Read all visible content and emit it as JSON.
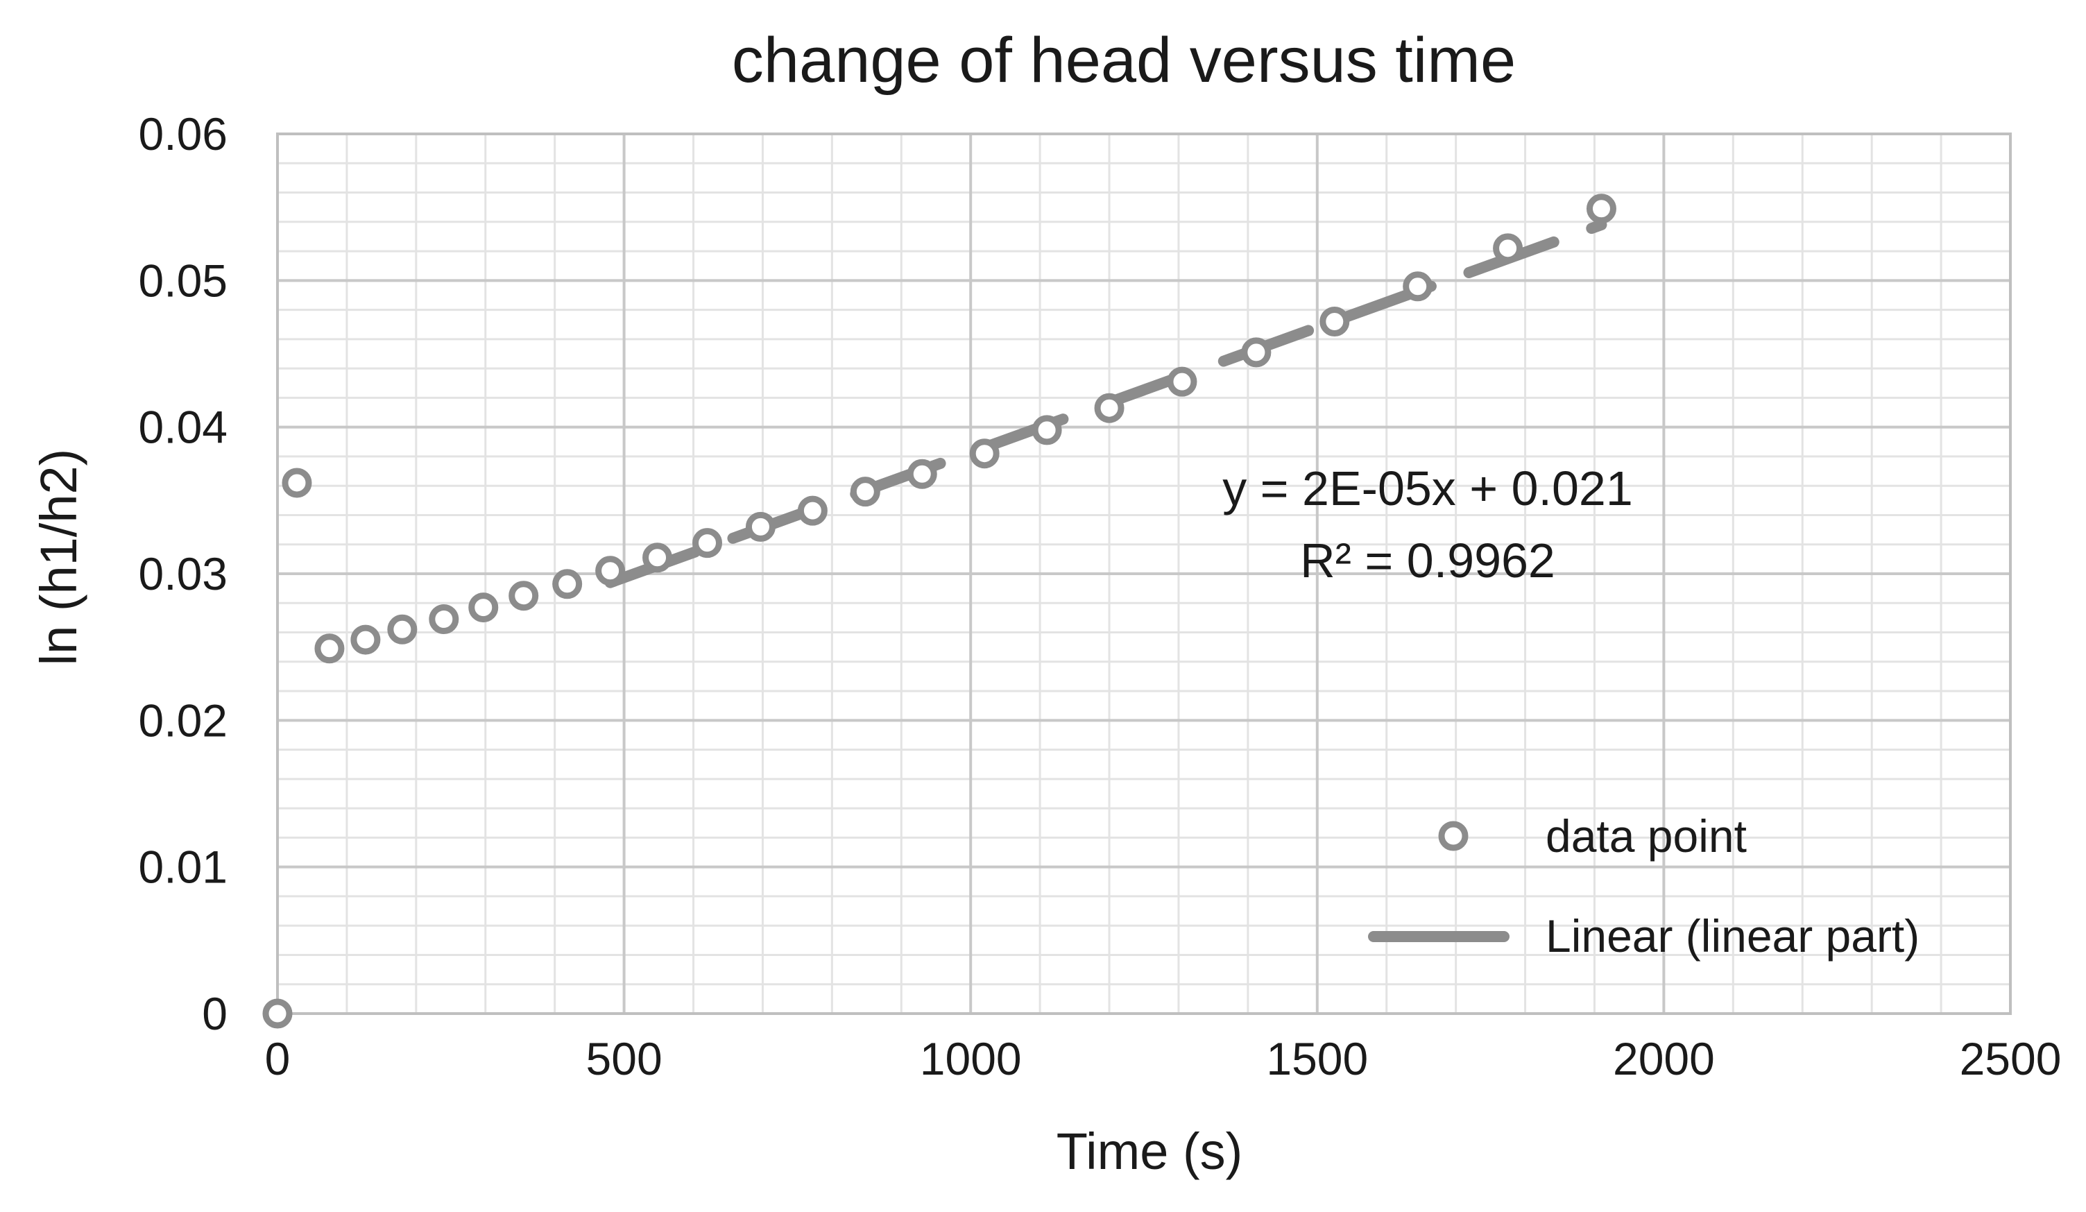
{
  "chart_data": {
    "type": "scatter",
    "title": "change of head versus time",
    "xlabel": "Time (s)",
    "ylabel": "ln (h1/h2)",
    "xlim": [
      0,
      2500
    ],
    "ylim": [
      0,
      0.06
    ],
    "x_major_step": 500,
    "x_minor_step": 100,
    "y_major_step": 0.01,
    "y_minor_step": 0.002,
    "x_ticks": [
      "0",
      "500",
      "1000",
      "1500",
      "2000",
      "2500"
    ],
    "y_ticks": [
      "0",
      "0.01",
      "0.02",
      "0.03",
      "0.04",
      "0.05",
      "0.06"
    ],
    "grid": true,
    "legend_position": "bottom-right",
    "colors": {
      "points": "#8c8c8c",
      "trendline": "#8c8c8c",
      "major_grid": "#c8c8c8",
      "minor_grid": "#e3e3e3"
    },
    "series": [
      {
        "name": "data point",
        "type": "scatter",
        "marker": "open-circle",
        "x": [
          0,
          28,
          75,
          127,
          180,
          240,
          297,
          355,
          418,
          480,
          548,
          620,
          697,
          772,
          848,
          930,
          1020,
          1110,
          1200,
          1305,
          1412,
          1525,
          1645,
          1775,
          1910
        ],
        "y": [
          0.0,
          0.0362,
          0.0249,
          0.0255,
          0.0262,
          0.0269,
          0.0277,
          0.0285,
          0.0293,
          0.0302,
          0.0311,
          0.0321,
          0.0332,
          0.0343,
          0.0356,
          0.0368,
          0.0382,
          0.0398,
          0.0413,
          0.0431,
          0.0451,
          0.0472,
          0.0496,
          0.0522,
          0.0549
        ]
      },
      {
        "name": "Linear (linear part)",
        "type": "trendline",
        "style": "dashed",
        "x": [
          480,
          1910
        ],
        "y": [
          0.0294,
          0.0538
        ]
      }
    ],
    "annotation": {
      "equation": "y = 2E-05x + 0.021",
      "r_squared": "R² = 0.9962"
    }
  }
}
